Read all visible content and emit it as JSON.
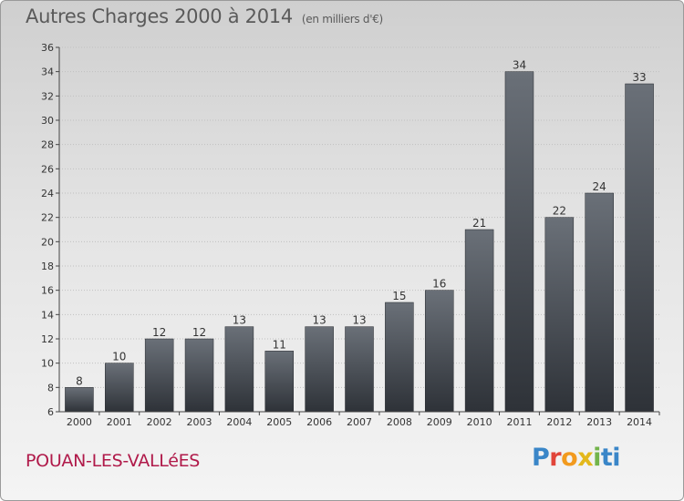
{
  "title": "Autres Charges 2000 à 2014",
  "subtitle": "(en milliers d'€)",
  "town": "POUAN-LES-VALLéES",
  "logo": {
    "letters": [
      "P",
      "r",
      "o",
      "x",
      "i",
      "ti"
    ]
  },
  "colors": {
    "bar_top": "#6a7078",
    "bar_bottom": "#2e3238",
    "grid": "#c0c0c0",
    "axis": "#444444",
    "text": "#333333",
    "town": "#b01a4a"
  },
  "chart_data": {
    "type": "bar",
    "categories": [
      "2000",
      "2001",
      "2002",
      "2003",
      "2004",
      "2005",
      "2006",
      "2007",
      "2008",
      "2009",
      "2010",
      "2011",
      "2012",
      "2013",
      "2014"
    ],
    "values": [
      8,
      10,
      12,
      12,
      13,
      11,
      13,
      13,
      15,
      16,
      21,
      34,
      22,
      24,
      33
    ],
    "title": "Autres Charges 2000 à 2014",
    "xlabel": "",
    "ylabel": "",
    "ylim": [
      6,
      36
    ],
    "yticks": [
      6,
      8,
      10,
      12,
      14,
      16,
      18,
      20,
      22,
      24,
      26,
      28,
      30,
      32,
      34,
      36
    ],
    "grid": true,
    "data_labels": true
  }
}
